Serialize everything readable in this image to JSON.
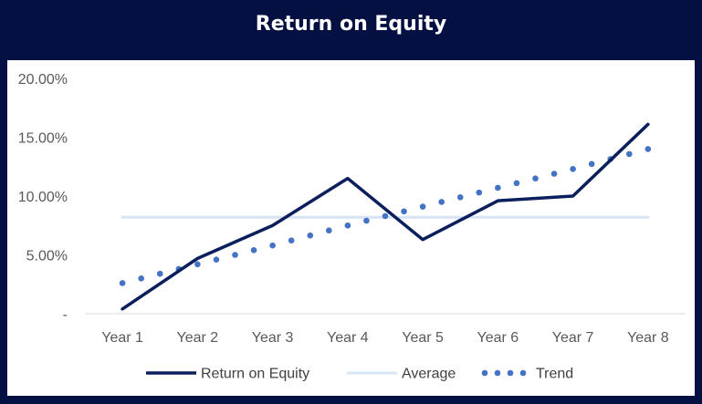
{
  "chart_data": {
    "type": "line",
    "title": "Return on Equity",
    "categories": [
      "Year 1",
      "Year 2",
      "Year 3",
      "Year 4",
      "Year 5",
      "Year 6",
      "Year 7",
      "Year 8"
    ],
    "y_tick_labels": [
      "-",
      "5.00%",
      "10.00%",
      "15.00%",
      "20.00%"
    ],
    "y_ticks": [
      0,
      5,
      10,
      15,
      20
    ],
    "ylim": [
      0,
      20
    ],
    "grid": false,
    "legend_position": "bottom",
    "series": [
      {
        "name": "Return on Equity",
        "style": "solid",
        "color": "#0b1f5c",
        "values": [
          0.4,
          4.7,
          7.5,
          11.5,
          6.3,
          9.6,
          10.0,
          16.1
        ]
      },
      {
        "name": "Average",
        "style": "solid",
        "color": "#d6e4f5",
        "values": [
          8.2,
          8.2,
          8.2,
          8.2,
          8.2,
          8.2,
          8.2,
          8.2
        ]
      },
      {
        "name": "Trend",
        "style": "dotted",
        "color": "#4472c4",
        "values": [
          2.6,
          4.2,
          5.8,
          7.5,
          9.1,
          10.7,
          12.3,
          14.0
        ]
      }
    ]
  }
}
